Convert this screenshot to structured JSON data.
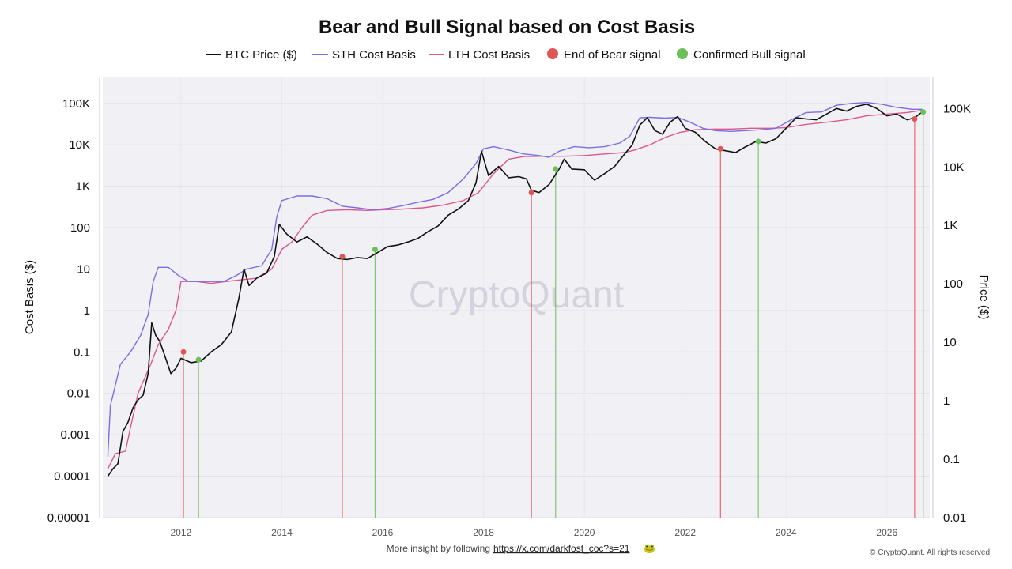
{
  "chart_data": {
    "type": "line",
    "title": "Bear and Bull Signal based on Cost Basis",
    "y_left_label": "Cost Basis ($)",
    "y_right_label": "Price ($)",
    "y_left_scale": "log",
    "y_right_scale": "log",
    "y_left_range": [
      1e-05,
      200000
    ],
    "y_right_range": [
      0.01,
      220000
    ],
    "x_range": [
      2010.45,
      2026.85
    ],
    "x_ticks": [
      "2012",
      "2014",
      "2016",
      "2018",
      "2020",
      "2022",
      "2024",
      "2026"
    ],
    "y_left_ticks": [
      "100K",
      "10K",
      "1K",
      "100",
      "10",
      "1",
      "0.1",
      "0.01",
      "0.001",
      "0.0001",
      "0.00001"
    ],
    "y_right_ticks": [
      "100K",
      "10K",
      "1K",
      "100",
      "10",
      "1",
      "0.1",
      "0.01"
    ],
    "grid": true,
    "legend_position": "top",
    "legend": [
      {
        "label": "BTC Price ($)",
        "kind": "line",
        "color": "#111111"
      },
      {
        "label": "STH Cost Basis",
        "kind": "line",
        "color": "#7b6fe0"
      },
      {
        "label": "LTH Cost Basis",
        "kind": "line",
        "color": "#d9598f"
      },
      {
        "label": "End of Bear signal",
        "kind": "dot",
        "color": "#e05555"
      },
      {
        "label": "Confirmed Bull signal",
        "kind": "dot",
        "color": "#6cc05a"
      }
    ],
    "series": [
      {
        "name": "BTC Price ($)",
        "color": "#111111",
        "points": [
          [
            2010.55,
            0.0001
          ],
          [
            2010.65,
            0.00015
          ],
          [
            2010.75,
            0.0002
          ],
          [
            2010.85,
            0.0012
          ],
          [
            2010.95,
            0.002
          ],
          [
            2011.05,
            0.0045
          ],
          [
            2011.15,
            0.007
          ],
          [
            2011.25,
            0.009
          ],
          [
            2011.35,
            0.03
          ],
          [
            2011.42,
            0.5
          ],
          [
            2011.5,
            0.25
          ],
          [
            2011.58,
            0.18
          ],
          [
            2011.68,
            0.08
          ],
          [
            2011.8,
            0.03
          ],
          [
            2011.9,
            0.04
          ],
          [
            2012.0,
            0.07
          ],
          [
            2012.2,
            0.055
          ],
          [
            2012.4,
            0.06
          ],
          [
            2012.6,
            0.1
          ],
          [
            2012.8,
            0.15
          ],
          [
            2013.0,
            0.3
          ],
          [
            2013.15,
            2
          ],
          [
            2013.25,
            10
          ],
          [
            2013.35,
            4
          ],
          [
            2013.5,
            6
          ],
          [
            2013.7,
            8
          ],
          [
            2013.85,
            20
          ],
          [
            2013.95,
            120
          ],
          [
            2014.1,
            70
          ],
          [
            2014.3,
            45
          ],
          [
            2014.5,
            60
          ],
          [
            2014.7,
            40
          ],
          [
            2014.9,
            25
          ],
          [
            2015.1,
            18
          ],
          [
            2015.3,
            17
          ],
          [
            2015.5,
            19
          ],
          [
            2015.7,
            18
          ],
          [
            2015.9,
            25
          ],
          [
            2016.1,
            35
          ],
          [
            2016.3,
            38
          ],
          [
            2016.5,
            45
          ],
          [
            2016.7,
            55
          ],
          [
            2016.9,
            80
          ],
          [
            2017.1,
            110
          ],
          [
            2017.3,
            200
          ],
          [
            2017.5,
            280
          ],
          [
            2017.7,
            450
          ],
          [
            2017.85,
            1200
          ],
          [
            2017.96,
            7000
          ],
          [
            2018.1,
            1800
          ],
          [
            2018.3,
            3000
          ],
          [
            2018.5,
            1600
          ],
          [
            2018.7,
            1700
          ],
          [
            2018.85,
            1500
          ],
          [
            2018.95,
            800
          ],
          [
            2019.1,
            700
          ],
          [
            2019.3,
            1100
          ],
          [
            2019.5,
            2600
          ],
          [
            2019.6,
            4500
          ],
          [
            2019.75,
            2600
          ],
          [
            2020.0,
            2500
          ],
          [
            2020.2,
            1400
          ],
          [
            2020.4,
            2000
          ],
          [
            2020.6,
            3000
          ],
          [
            2020.8,
            6000
          ],
          [
            2020.95,
            10000
          ],
          [
            2021.1,
            30000
          ],
          [
            2021.25,
            45000
          ],
          [
            2021.4,
            22000
          ],
          [
            2021.55,
            18000
          ],
          [
            2021.7,
            35000
          ],
          [
            2021.85,
            48000
          ],
          [
            2022.0,
            25000
          ],
          [
            2022.2,
            20000
          ],
          [
            2022.4,
            12000
          ],
          [
            2022.6,
            8000
          ],
          [
            2022.85,
            7000
          ],
          [
            2023.0,
            6500
          ],
          [
            2023.2,
            9000
          ],
          [
            2023.4,
            12000
          ],
          [
            2023.6,
            11000
          ],
          [
            2023.8,
            14000
          ],
          [
            2024.0,
            25000
          ],
          [
            2024.2,
            45000
          ],
          [
            2024.4,
            42000
          ],
          [
            2024.6,
            40000
          ],
          [
            2024.8,
            55000
          ],
          [
            2025.0,
            75000
          ],
          [
            2025.2,
            65000
          ],
          [
            2025.4,
            85000
          ],
          [
            2025.6,
            95000
          ],
          [
            2025.8,
            75000
          ],
          [
            2026.0,
            50000
          ],
          [
            2026.2,
            55000
          ],
          [
            2026.4,
            40000
          ],
          [
            2026.55,
            45000
          ],
          [
            2026.7,
            62000
          ]
        ]
      },
      {
        "name": "STH Cost Basis",
        "color": "#7b6fe0",
        "points": [
          [
            2010.55,
            0.0003
          ],
          [
            2010.6,
            0.005
          ],
          [
            2010.8,
            0.05
          ],
          [
            2011.0,
            0.1
          ],
          [
            2011.2,
            0.25
          ],
          [
            2011.35,
            0.8
          ],
          [
            2011.45,
            5
          ],
          [
            2011.55,
            11
          ],
          [
            2011.75,
            11
          ],
          [
            2011.95,
            7
          ],
          [
            2012.15,
            5
          ],
          [
            2012.4,
            5
          ],
          [
            2012.6,
            5
          ],
          [
            2012.85,
            5
          ],
          [
            2013.1,
            7
          ],
          [
            2013.3,
            10
          ],
          [
            2013.6,
            12
          ],
          [
            2013.8,
            30
          ],
          [
            2013.9,
            180
          ],
          [
            2014.0,
            450
          ],
          [
            2014.3,
            580
          ],
          [
            2014.6,
            580
          ],
          [
            2014.9,
            500
          ],
          [
            2015.2,
            330
          ],
          [
            2015.5,
            300
          ],
          [
            2015.8,
            270
          ],
          [
            2016.1,
            290
          ],
          [
            2016.4,
            340
          ],
          [
            2016.7,
            410
          ],
          [
            2017.0,
            480
          ],
          [
            2017.3,
            700
          ],
          [
            2017.6,
            1500
          ],
          [
            2017.85,
            3500
          ],
          [
            2018.0,
            8000
          ],
          [
            2018.2,
            9000
          ],
          [
            2018.5,
            7500
          ],
          [
            2018.8,
            6000
          ],
          [
            2019.1,
            5500
          ],
          [
            2019.3,
            5000
          ],
          [
            2019.5,
            7000
          ],
          [
            2019.8,
            9000
          ],
          [
            2020.1,
            8500
          ],
          [
            2020.4,
            9000
          ],
          [
            2020.7,
            11000
          ],
          [
            2020.9,
            16000
          ],
          [
            2021.1,
            45000
          ],
          [
            2021.3,
            46000
          ],
          [
            2021.6,
            44000
          ],
          [
            2021.85,
            46000
          ],
          [
            2022.1,
            35000
          ],
          [
            2022.35,
            25000
          ],
          [
            2022.6,
            22000
          ],
          [
            2022.9,
            21000
          ],
          [
            2023.2,
            22000
          ],
          [
            2023.5,
            23000
          ],
          [
            2023.8,
            25000
          ],
          [
            2024.1,
            40000
          ],
          [
            2024.4,
            60000
          ],
          [
            2024.7,
            62000
          ],
          [
            2025.0,
            90000
          ],
          [
            2025.3,
            100000
          ],
          [
            2025.6,
            105000
          ],
          [
            2025.9,
            95000
          ],
          [
            2026.2,
            80000
          ],
          [
            2026.5,
            72000
          ],
          [
            2026.7,
            72000
          ]
        ]
      },
      {
        "name": "LTH Cost Basis",
        "color": "#d9598f",
        "points": [
          [
            2010.55,
            0.00015
          ],
          [
            2010.7,
            0.00035
          ],
          [
            2010.9,
            0.0004
          ],
          [
            2011.0,
            0.0015
          ],
          [
            2011.15,
            0.01
          ],
          [
            2011.4,
            0.05
          ],
          [
            2011.55,
            0.15
          ],
          [
            2011.75,
            0.35
          ],
          [
            2011.9,
            1
          ],
          [
            2012.0,
            5
          ],
          [
            2012.3,
            5
          ],
          [
            2012.6,
            4.5
          ],
          [
            2012.9,
            5
          ],
          [
            2013.2,
            5.5
          ],
          [
            2013.5,
            6
          ],
          [
            2013.8,
            10
          ],
          [
            2014.0,
            30
          ],
          [
            2014.2,
            45
          ],
          [
            2014.4,
            100
          ],
          [
            2014.6,
            200
          ],
          [
            2014.9,
            260
          ],
          [
            2015.3,
            270
          ],
          [
            2015.7,
            260
          ],
          [
            2016.0,
            270
          ],
          [
            2016.4,
            280
          ],
          [
            2016.8,
            300
          ],
          [
            2017.2,
            350
          ],
          [
            2017.6,
            450
          ],
          [
            2017.9,
            700
          ],
          [
            2018.2,
            2000
          ],
          [
            2018.5,
            4500
          ],
          [
            2018.8,
            5200
          ],
          [
            2019.2,
            5300
          ],
          [
            2019.6,
            5300
          ],
          [
            2020.0,
            5500
          ],
          [
            2020.4,
            6000
          ],
          [
            2020.8,
            6500
          ],
          [
            2021.0,
            7500
          ],
          [
            2021.3,
            10000
          ],
          [
            2021.6,
            15000
          ],
          [
            2021.9,
            20000
          ],
          [
            2022.2,
            23000
          ],
          [
            2022.6,
            24000
          ],
          [
            2022.9,
            24000
          ],
          [
            2023.3,
            25000
          ],
          [
            2023.7,
            25000
          ],
          [
            2024.0,
            26000
          ],
          [
            2024.4,
            31000
          ],
          [
            2024.8,
            35000
          ],
          [
            2025.2,
            40000
          ],
          [
            2025.6,
            50000
          ],
          [
            2026.0,
            55000
          ],
          [
            2026.4,
            60000
          ],
          [
            2026.7,
            68000
          ]
        ]
      }
    ],
    "signals": [
      {
        "type": "End of Bear signal",
        "color": "#e05555",
        "x": 2012.05,
        "y": 0.1
      },
      {
        "type": "Confirmed Bull signal",
        "color": "#6cc05a",
        "x": 2012.35,
        "y": 0.065
      },
      {
        "type": "End of Bear signal",
        "color": "#e05555",
        "x": 2015.2,
        "y": 20
      },
      {
        "type": "Confirmed Bull signal",
        "color": "#6cc05a",
        "x": 2015.85,
        "y": 30
      },
      {
        "type": "End of Bear signal",
        "color": "#e05555",
        "x": 2018.95,
        "y": 700
      },
      {
        "type": "Confirmed Bull signal",
        "color": "#6cc05a",
        "x": 2019.43,
        "y": 2600
      },
      {
        "type": "End of Bear signal",
        "color": "#e05555",
        "x": 2022.7,
        "y": 8000
      },
      {
        "type": "Confirmed Bull signal",
        "color": "#6cc05a",
        "x": 2023.45,
        "y": 12000
      },
      {
        "type": "End of Bear signal",
        "color": "#e05555",
        "x": 2026.55,
        "y": 42000
      },
      {
        "type": "Confirmed Bull signal",
        "color": "#6cc05a",
        "x": 2026.72,
        "y": 62000
      }
    ]
  },
  "watermark": "CryptoQuant",
  "footer": {
    "text": "More insight by following",
    "link": "https://x.com/darkfost_coc?s=21",
    "emoji": "🐸",
    "copyright": "© CryptoQuant. All rights reserved"
  }
}
